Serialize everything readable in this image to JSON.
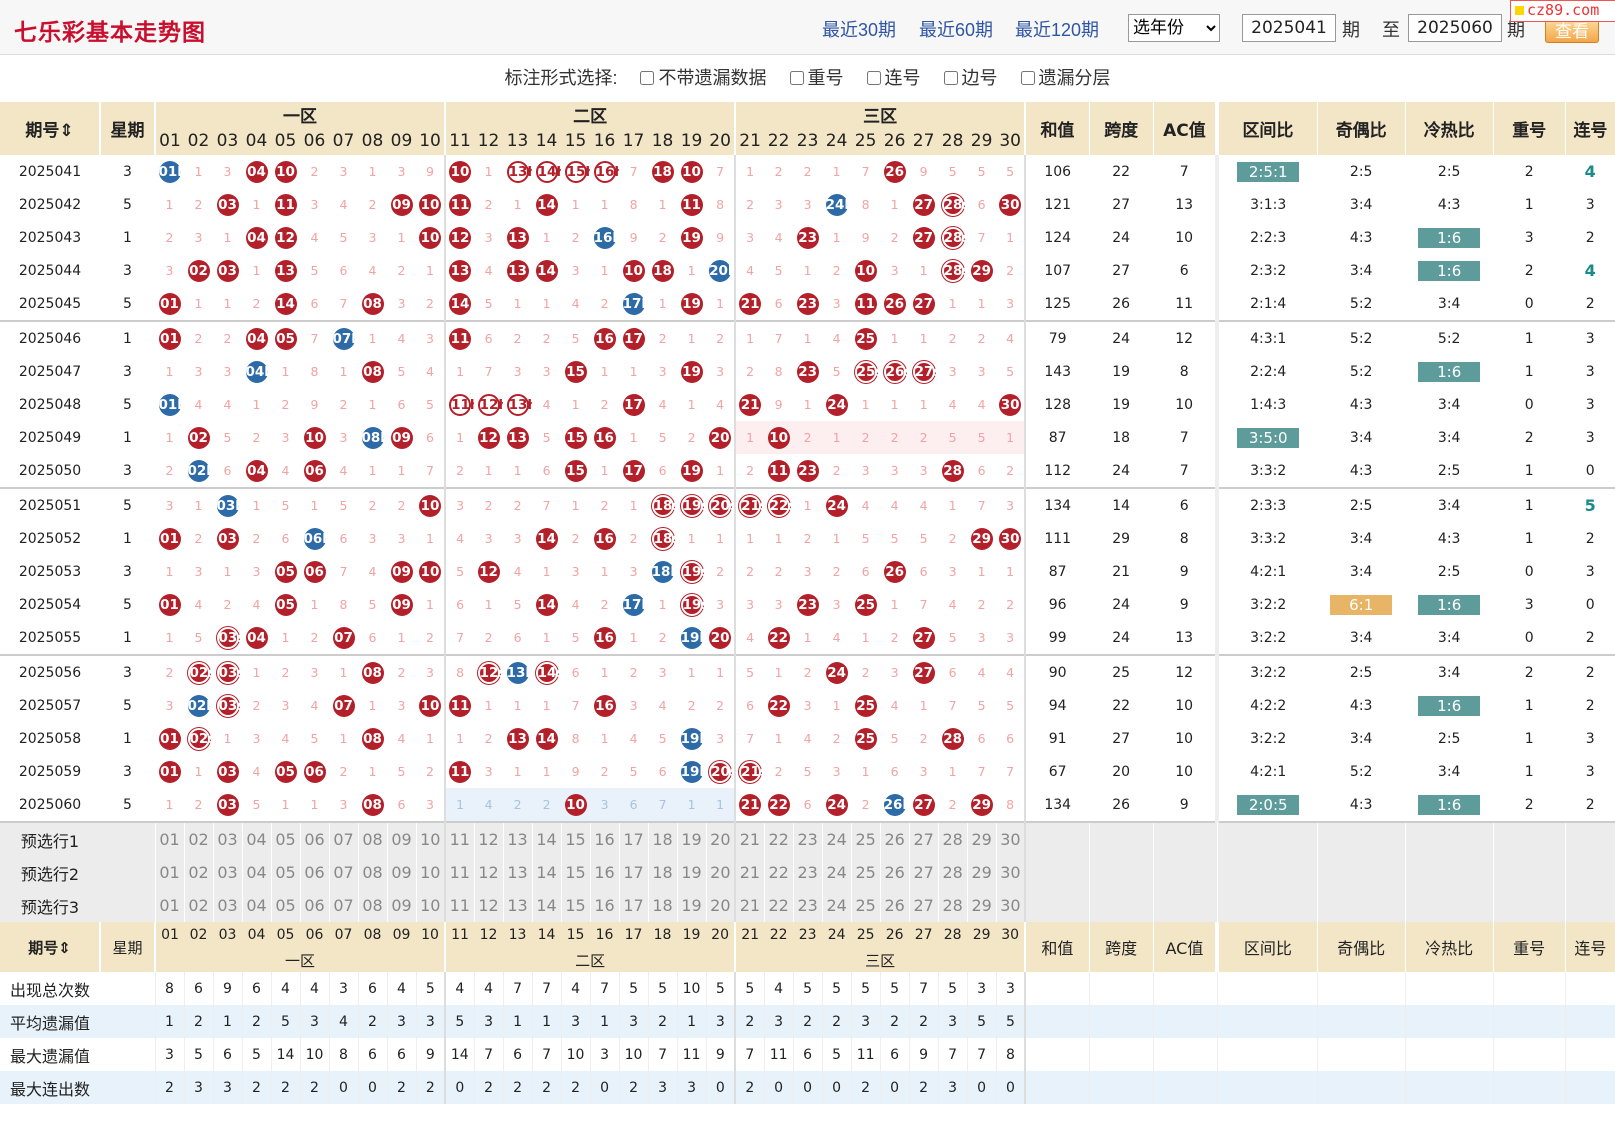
{
  "header": {
    "title": "七乐彩基本走势图",
    "quick_links": [
      "最近30期",
      "最近60期",
      "最近120期"
    ],
    "year_select": "选年份",
    "start_period": "2025041",
    "period_unit": "期",
    "to_label": "至",
    "end_period": "2025060",
    "view_button": "查看",
    "logo": "cz89.com"
  },
  "options": {
    "label": "标注形式选择:",
    "checkboxes": [
      "不带遗漏数据",
      "重号",
      "连号",
      "边号",
      "遗漏分层"
    ]
  },
  "columns": {
    "period": "期号",
    "weekday": "星期",
    "zones": [
      "一区",
      "二区",
      "三区"
    ],
    "numbers": [
      "01",
      "02",
      "03",
      "04",
      "05",
      "06",
      "07",
      "08",
      "09",
      "10",
      "11",
      "12",
      "13",
      "14",
      "15",
      "16",
      "17",
      "18",
      "19",
      "20",
      "21",
      "22",
      "23",
      "24",
      "25",
      "26",
      "27",
      "28",
      "29",
      "30"
    ],
    "stats": [
      "和值",
      "跨度",
      "AC值",
      "区间比",
      "奇偶比",
      "冷热比",
      "重号",
      "连号"
    ]
  },
  "draws": [
    {
      "period": "2025041",
      "week": "3",
      "cells": [
        "01b",
        "1",
        "3",
        "04",
        "10",
        "2",
        "3",
        "1",
        "3",
        "9",
        "10",
        "1",
        "13h",
        "14h",
        "15h",
        "16h",
        "7",
        "18",
        "10",
        "7",
        "1",
        "2",
        "2",
        "1",
        "7",
        "26",
        "9",
        "5",
        "5",
        "5"
      ],
      "sum": "106",
      "span": "22",
      "ac": "7",
      "zone": "2:5:1",
      "zone_tag": true,
      "odd": "2:5",
      "hot": "2:5",
      "repeat": "2",
      "consec": "4",
      "consec_tag": true
    },
    {
      "period": "2025042",
      "week": "5",
      "cells": [
        "1",
        "2",
        "03",
        "1",
        "11",
        "3",
        "4",
        "2",
        "09",
        "10",
        "11",
        "2",
        "1",
        "14",
        "1",
        "1",
        "8",
        "1",
        "11",
        "8",
        "2",
        "3",
        "3",
        "24b",
        "8",
        "1",
        "27",
        "28s",
        "6",
        "30"
      ],
      "sum": "121",
      "span": "27",
      "ac": "13",
      "zone": "3:1:3",
      "odd": "3:4",
      "hot": "4:3",
      "repeat": "1",
      "consec": "3"
    },
    {
      "period": "2025043",
      "week": "1",
      "cells": [
        "2",
        "3",
        "1",
        "04",
        "12",
        "4",
        "5",
        "3",
        "1",
        "10",
        "12",
        "3",
        "13",
        "1",
        "2",
        "16b",
        "9",
        "2",
        "19",
        "9",
        "3",
        "4",
        "23",
        "1",
        "9",
        "2",
        "27",
        "28s",
        "7",
        "1"
      ],
      "sum": "124",
      "span": "24",
      "ac": "10",
      "zone": "2:2:3",
      "odd": "4:3",
      "hot": "1:6",
      "hot_tag": true,
      "repeat": "3",
      "consec": "2"
    },
    {
      "period": "2025044",
      "week": "3",
      "cells": [
        "3",
        "02",
        "03",
        "1",
        "13",
        "5",
        "6",
        "4",
        "2",
        "1",
        "13",
        "4",
        "13",
        "14",
        "3",
        "1",
        "10",
        "18",
        "1",
        "20b",
        "4",
        "5",
        "1",
        "2",
        "10",
        "3",
        "1",
        "28s",
        "29",
        "2"
      ],
      "sum": "107",
      "span": "27",
      "ac": "6",
      "zone": "2:3:2",
      "odd": "3:4",
      "hot": "1:6",
      "hot_tag": true,
      "repeat": "2",
      "consec": "4",
      "consec_tag": true
    },
    {
      "period": "2025045",
      "week": "5",
      "cells": [
        "01",
        "1",
        "1",
        "2",
        "14",
        "6",
        "7",
        "08",
        "3",
        "2",
        "14",
        "5",
        "1",
        "1",
        "4",
        "2",
        "17b",
        "1",
        "19",
        "1",
        "21",
        "6",
        "23",
        "3",
        "11",
        "26",
        "27",
        "1",
        "1",
        "3"
      ],
      "sum": "125",
      "span": "26",
      "ac": "11",
      "zone": "2:1:4",
      "odd": "5:2",
      "hot": "3:4",
      "repeat": "0",
      "consec": "2"
    },
    {
      "period": "2025046",
      "week": "1",
      "cells": [
        "01",
        "2",
        "2",
        "04",
        "05",
        "7",
        "07b",
        "1",
        "4",
        "3",
        "11",
        "6",
        "2",
        "2",
        "5",
        "16",
        "17",
        "2",
        "1",
        "2",
        "1",
        "7",
        "1",
        "4",
        "25",
        "1",
        "1",
        "2",
        "2",
        "4"
      ],
      "sum": "79",
      "span": "24",
      "ac": "12",
      "zone": "4:3:1",
      "odd": "5:2",
      "hot": "5:2",
      "repeat": "1",
      "consec": "3"
    },
    {
      "period": "2025047",
      "week": "3",
      "cells": [
        "1",
        "3",
        "3",
        "04b",
        "1",
        "8",
        "1",
        "08",
        "5",
        "4",
        "1",
        "7",
        "3",
        "3",
        "15",
        "1",
        "1",
        "3",
        "19",
        "3",
        "2",
        "8",
        "23",
        "5",
        "25s",
        "26s",
        "27s",
        "3",
        "3",
        "5"
      ],
      "sum": "143",
      "span": "19",
      "ac": "8",
      "zone": "2:2:4",
      "odd": "5:2",
      "hot": "1:6",
      "hot_tag": true,
      "repeat": "1",
      "consec": "3"
    },
    {
      "period": "2025048",
      "week": "5",
      "cells": [
        "01b",
        "4",
        "4",
        "1",
        "2",
        "9",
        "2",
        "1",
        "6",
        "5",
        "11h",
        "12h",
        "13h",
        "4",
        "1",
        "2",
        "17",
        "4",
        "1",
        "4",
        "21",
        "9",
        "1",
        "24",
        "1",
        "1",
        "1",
        "4",
        "4",
        "30"
      ],
      "sum": "128",
      "span": "19",
      "ac": "10",
      "zone": "1:4:3",
      "odd": "4:3",
      "hot": "3:4",
      "repeat": "0",
      "consec": "3"
    },
    {
      "period": "2025049",
      "week": "1",
      "cells": [
        "1",
        "02",
        "5",
        "2",
        "3",
        "10",
        "3",
        "08b",
        "09",
        "6",
        "1",
        "12",
        "13",
        "5",
        "15",
        "16",
        "1",
        "5",
        "2",
        "20",
        "1",
        "10",
        "2",
        "1",
        "2",
        "2",
        "2",
        "5",
        "5",
        "1"
      ],
      "sum": "87",
      "span": "18",
      "ac": "7",
      "zone": "3:5:0",
      "zone_tag": true,
      "odd": "3:4",
      "hot": "3:4",
      "repeat": "2",
      "consec": "3"
    },
    {
      "period": "2025050",
      "week": "3",
      "cells": [
        "2",
        "02b",
        "6",
        "04",
        "4",
        "06",
        "4",
        "1",
        "1",
        "7",
        "2",
        "1",
        "1",
        "6",
        "15",
        "1",
        "17",
        "6",
        "19",
        "1",
        "2",
        "11",
        "23",
        "2",
        "3",
        "3",
        "3",
        "28",
        "6",
        "2"
      ],
      "sum": "112",
      "span": "24",
      "ac": "7",
      "zone": "3:3:2",
      "odd": "4:3",
      "hot": "2:5",
      "repeat": "1",
      "consec": "0"
    },
    {
      "period": "2025051",
      "week": "5",
      "cells": [
        "3",
        "1",
        "03b",
        "1",
        "5",
        "1",
        "5",
        "2",
        "2",
        "10",
        "3",
        "2",
        "2",
        "7",
        "1",
        "2",
        "1",
        "18s",
        "19s",
        "20s",
        "21s",
        "22s",
        "1",
        "24",
        "4",
        "4",
        "4",
        "1",
        "7",
        "3"
      ],
      "sum": "134",
      "span": "14",
      "ac": "6",
      "zone": "2:3:3",
      "odd": "2:5",
      "hot": "3:4",
      "repeat": "1",
      "consec": "5",
      "consec_tag": true
    },
    {
      "period": "2025052",
      "week": "1",
      "cells": [
        "01",
        "2",
        "03",
        "2",
        "6",
        "06b",
        "6",
        "3",
        "3",
        "1",
        "4",
        "3",
        "3",
        "14",
        "2",
        "16",
        "2",
        "18s",
        "1",
        "1",
        "1",
        "1",
        "2",
        "1",
        "5",
        "5",
        "5",
        "2",
        "29",
        "30"
      ],
      "sum": "111",
      "span": "29",
      "ac": "8",
      "zone": "3:3:2",
      "odd": "3:4",
      "hot": "4:3",
      "repeat": "1",
      "consec": "2"
    },
    {
      "period": "2025053",
      "week": "3",
      "cells": [
        "1",
        "3",
        "1",
        "3",
        "05",
        "06",
        "7",
        "4",
        "09",
        "10",
        "5",
        "12",
        "4",
        "1",
        "3",
        "1",
        "3",
        "18b",
        "19s",
        "2",
        "2",
        "2",
        "3",
        "2",
        "6",
        "26",
        "6",
        "3",
        "1",
        "1"
      ],
      "sum": "87",
      "span": "21",
      "ac": "9",
      "zone": "4:2:1",
      "odd": "3:4",
      "hot": "2:5",
      "repeat": "0",
      "consec": "3"
    },
    {
      "period": "2025054",
      "week": "5",
      "cells": [
        "01",
        "4",
        "2",
        "4",
        "05",
        "1",
        "8",
        "5",
        "09",
        "1",
        "6",
        "1",
        "5",
        "14",
        "4",
        "2",
        "17b",
        "1",
        "19s",
        "3",
        "3",
        "3",
        "23",
        "3",
        "25",
        "1",
        "7",
        "4",
        "2",
        "2"
      ],
      "sum": "96",
      "span": "24",
      "ac": "9",
      "zone": "3:2:2",
      "odd": "6:1",
      "odd_tag": true,
      "hot": "1:6",
      "hot_tag": true,
      "repeat": "3",
      "consec": "0"
    },
    {
      "period": "2025055",
      "week": "1",
      "cells": [
        "1",
        "5",
        "03s",
        "04",
        "1",
        "2",
        "07",
        "6",
        "1",
        "2",
        "7",
        "2",
        "6",
        "1",
        "5",
        "16",
        "1",
        "2",
        "19b",
        "20",
        "4",
        "22",
        "1",
        "4",
        "1",
        "2",
        "27",
        "5",
        "3",
        "3"
      ],
      "sum": "99",
      "span": "24",
      "ac": "13",
      "zone": "3:2:2",
      "odd": "3:4",
      "hot": "3:4",
      "repeat": "0",
      "consec": "2"
    },
    {
      "period": "2025056",
      "week": "3",
      "cells": [
        "2",
        "02s",
        "03s",
        "1",
        "2",
        "3",
        "1",
        "08",
        "2",
        "3",
        "8",
        "12s",
        "13b",
        "14s",
        "6",
        "1",
        "2",
        "3",
        "1",
        "1",
        "5",
        "1",
        "2",
        "24",
        "2",
        "3",
        "27",
        "6",
        "4",
        "4"
      ],
      "sum": "90",
      "span": "25",
      "ac": "12",
      "zone": "3:2:2",
      "odd": "2:5",
      "hot": "3:4",
      "repeat": "2",
      "consec": "2"
    },
    {
      "period": "2025057",
      "week": "5",
      "cells": [
        "3",
        "02b",
        "03s",
        "2",
        "3",
        "4",
        "07",
        "1",
        "3",
        "10",
        "11",
        "1",
        "1",
        "1",
        "7",
        "16",
        "3",
        "4",
        "2",
        "2",
        "6",
        "22",
        "3",
        "1",
        "25",
        "4",
        "1",
        "7",
        "5",
        "5"
      ],
      "sum": "94",
      "span": "22",
      "ac": "10",
      "zone": "4:2:2",
      "odd": "4:3",
      "hot": "1:6",
      "hot_tag": true,
      "repeat": "1",
      "consec": "2"
    },
    {
      "period": "2025058",
      "week": "1",
      "cells": [
        "01",
        "02s",
        "1",
        "3",
        "4",
        "5",
        "1",
        "08",
        "4",
        "1",
        "1",
        "2",
        "13",
        "14",
        "8",
        "1",
        "4",
        "5",
        "19b",
        "3",
        "7",
        "1",
        "4",
        "2",
        "25",
        "5",
        "2",
        "28",
        "6",
        "6"
      ],
      "sum": "91",
      "span": "27",
      "ac": "10",
      "zone": "3:2:2",
      "odd": "3:4",
      "hot": "2:5",
      "repeat": "1",
      "consec": "3"
    },
    {
      "period": "2025059",
      "week": "3",
      "cells": [
        "01",
        "1",
        "03",
        "4",
        "05",
        "06",
        "2",
        "1",
        "5",
        "2",
        "11",
        "3",
        "1",
        "1",
        "9",
        "2",
        "5",
        "6",
        "19b",
        "20s",
        "21s",
        "2",
        "5",
        "3",
        "1",
        "6",
        "3",
        "1",
        "7",
        "7"
      ],
      "sum": "67",
      "span": "20",
      "ac": "10",
      "zone": "4:2:1",
      "odd": "5:2",
      "hot": "3:4",
      "repeat": "1",
      "consec": "3"
    },
    {
      "period": "2025060",
      "week": "5",
      "cells": [
        "1",
        "2",
        "03",
        "5",
        "1",
        "1",
        "3",
        "08",
        "6",
        "3",
        "1",
        "4",
        "2",
        "2",
        "10",
        "3",
        "6",
        "7",
        "1",
        "1",
        "21",
        "22",
        "6",
        "24",
        "2",
        "26b",
        "27",
        "2",
        "29",
        "8"
      ],
      "sum": "134",
      "span": "26",
      "ac": "9",
      "zone": "2:0:5",
      "zone_tag": true,
      "odd": "4:3",
      "hot": "1:6",
      "hot_tag": true,
      "repeat": "2",
      "consec": "2"
    }
  ],
  "preselect_rows": [
    "预选行1",
    "预选行2",
    "预选行3"
  ],
  "stats_rows": [
    {
      "label": "出现总次数",
      "values": [
        "8",
        "6",
        "9",
        "6",
        "4",
        "4",
        "3",
        "6",
        "4",
        "5",
        "4",
        "4",
        "7",
        "7",
        "4",
        "7",
        "5",
        "5",
        "10",
        "5",
        "5",
        "4",
        "5",
        "5",
        "5",
        "5",
        "7",
        "5",
        "3",
        "3"
      ]
    },
    {
      "label": "平均遗漏值",
      "values": [
        "1",
        "2",
        "1",
        "2",
        "5",
        "3",
        "4",
        "2",
        "3",
        "3",
        "5",
        "3",
        "1",
        "1",
        "3",
        "1",
        "3",
        "2",
        "1",
        "3",
        "2",
        "3",
        "2",
        "2",
        "3",
        "2",
        "2",
        "3",
        "5",
        "5"
      ]
    },
    {
      "label": "最大遗漏值",
      "values": [
        "3",
        "5",
        "6",
        "5",
        "14",
        "10",
        "8",
        "6",
        "6",
        "9",
        "14",
        "7",
        "6",
        "7",
        "10",
        "3",
        "10",
        "7",
        "11",
        "9",
        "7",
        "11",
        "6",
        "5",
        "11",
        "6",
        "9",
        "7",
        "7",
        "8"
      ]
    },
    {
      "label": "最大连出数",
      "values": [
        "2",
        "3",
        "3",
        "2",
        "2",
        "2",
        "0",
        "0",
        "2",
        "2",
        "0",
        "2",
        "2",
        "2",
        "2",
        "0",
        "2",
        "3",
        "3",
        "0",
        "2",
        "0",
        "0",
        "0",
        "2",
        "0",
        "2",
        "3",
        "0",
        "0"
      ]
    }
  ]
}
